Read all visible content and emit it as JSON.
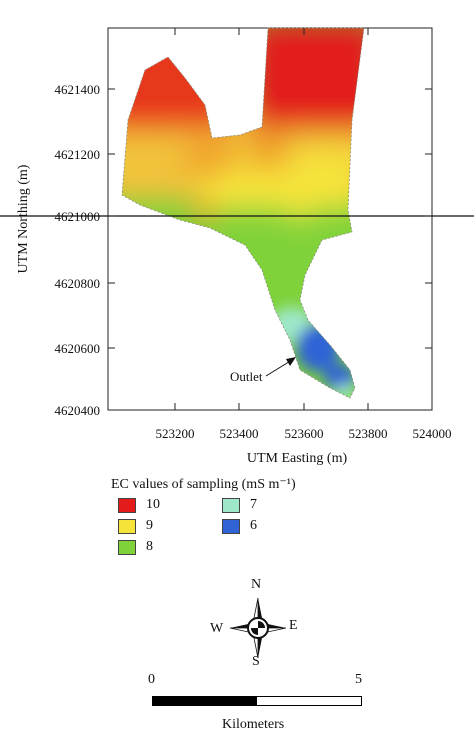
{
  "map": {
    "x_axis": {
      "title": "UTM Easting (m)",
      "ticks": [
        "523200",
        "523400",
        "523600",
        "523800",
        "524000"
      ]
    },
    "y_axis": {
      "title": "UTM Northing (m)",
      "ticks": [
        "4621400",
        "4621200",
        "4621000",
        "4620800",
        "4620600",
        "4620400"
      ]
    },
    "annotation": "Outlet",
    "colors": {
      "ec10": "#e31b1b",
      "ec9": "#f5e33a",
      "ec8": "#7fd23a",
      "ec7": "#9ee8c9",
      "ec6": "#2f63d6"
    }
  },
  "legend": {
    "title": "EC values of sampling (mS m⁻¹)",
    "items": [
      {
        "label": "10",
        "color": "#e31b1b"
      },
      {
        "label": "9",
        "color": "#f5e33a"
      },
      {
        "label": "8",
        "color": "#7fd23a"
      },
      {
        "label": "7",
        "color": "#9ee8c9"
      },
      {
        "label": "6",
        "color": "#2f63d6"
      }
    ]
  },
  "compass": {
    "north": "N",
    "south": "S",
    "east": "E",
    "west": "W"
  },
  "scale": {
    "start": "0",
    "end": "5",
    "unit": "Kilometers"
  }
}
